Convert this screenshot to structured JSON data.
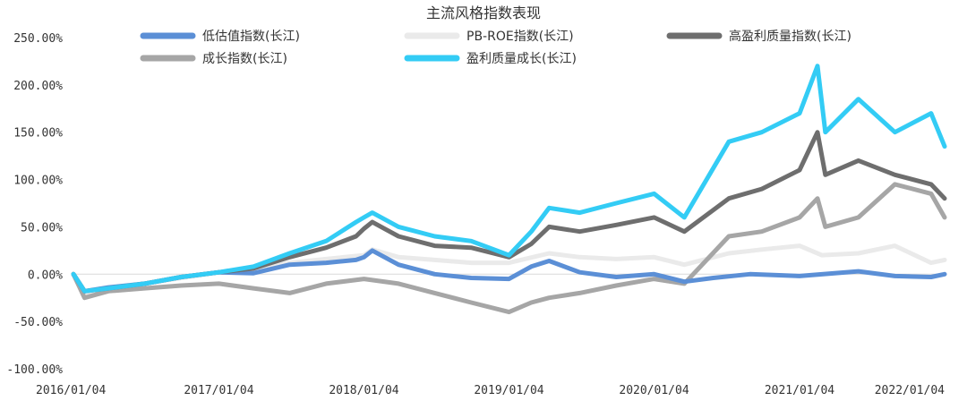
{
  "chart_data": {
    "type": "line",
    "title": "主流风格指数表现",
    "xlabel": "",
    "ylabel": "",
    "ylim": [
      -100,
      250
    ],
    "y_ticks": [
      "250.00%",
      "200.00%",
      "150.00%",
      "100.00%",
      "50.00%",
      "0.00%",
      "-50.00%",
      "-100.00%"
    ],
    "x_ticks": [
      "2016/01/04",
      "2017/01/04",
      "2018/01/04",
      "2019/01/04",
      "2020/01/04",
      "2021/01/04",
      "2022/01/04"
    ],
    "x_range": [
      "2016/01/04",
      "2022/01/04"
    ],
    "grid": false,
    "legend": "top",
    "series": [
      {
        "name": "低估值指数(长江)",
        "color": "#5B8FD6",
        "x": [
          "2016/01/04",
          "2016/02/01",
          "2016/04/01",
          "2016/07/01",
          "2016/10/01",
          "2017/01/04",
          "2017/04/01",
          "2017/07/01",
          "2017/10/01",
          "2017/12/15",
          "2018/01/04",
          "2018/01/25",
          "2018/04/01",
          "2018/07/01",
          "2018/10/01",
          "2019/01/04",
          "2019/03/01",
          "2019/04/15",
          "2019/07/01",
          "2019/10/01",
          "2020/01/04",
          "2020/03/20",
          "2020/06/01",
          "2020/09/01",
          "2021/01/04",
          "2021/06/01",
          "2021/09/01",
          "2021/12/01",
          "2022/01/04"
        ],
        "values": [
          0,
          -18,
          -14,
          -10,
          -3,
          2,
          1,
          10,
          12,
          15,
          18,
          25,
          10,
          0,
          -4,
          -5,
          8,
          14,
          2,
          -3,
          0,
          -8,
          -4,
          0,
          -2,
          3,
          -2,
          -3,
          0
        ]
      },
      {
        "name": "PB-ROE指数(长江)",
        "color": "#EAEAEA",
        "x": [
          "2016/01/04",
          "2016/02/01",
          "2016/04/01",
          "2016/07/01",
          "2016/10/01",
          "2017/01/04",
          "2017/04/01",
          "2017/07/01",
          "2017/10/01",
          "2018/01/04",
          "2018/01/25",
          "2018/04/01",
          "2018/07/01",
          "2018/10/01",
          "2019/01/04",
          "2019/04/15",
          "2019/07/01",
          "2019/10/01",
          "2020/01/04",
          "2020/03/20",
          "2020/07/10",
          "2020/10/01",
          "2021/01/04",
          "2021/03/01",
          "2021/06/01",
          "2021/09/01",
          "2021/12/01",
          "2022/01/04"
        ],
        "values": [
          0,
          -20,
          -15,
          -10,
          -4,
          2,
          4,
          12,
          16,
          20,
          26,
          18,
          15,
          12,
          12,
          22,
          18,
          16,
          18,
          10,
          22,
          26,
          30,
          20,
          22,
          30,
          12,
          15
        ]
      },
      {
        "name": "高盈利质量指数(长江)",
        "color": "#6E6E6E",
        "x": [
          "2016/01/04",
          "2016/02/01",
          "2016/04/01",
          "2016/07/01",
          "2016/10/01",
          "2017/01/04",
          "2017/04/01",
          "2017/07/01",
          "2017/10/01",
          "2017/12/15",
          "2018/01/04",
          "2018/01/25",
          "2018/04/01",
          "2018/07/01",
          "2018/10/01",
          "2019/01/04",
          "2019/03/01",
          "2019/04/15",
          "2019/07/01",
          "2019/10/01",
          "2020/01/04",
          "2020/03/20",
          "2020/07/10",
          "2020/10/01",
          "2021/01/04",
          "2021/02/18",
          "2021/03/10",
          "2021/06/01",
          "2021/09/01",
          "2021/12/01",
          "2022/01/04"
        ],
        "values": [
          0,
          -18,
          -15,
          -10,
          -3,
          2,
          6,
          18,
          28,
          40,
          48,
          55,
          40,
          30,
          28,
          18,
          32,
          50,
          45,
          52,
          60,
          45,
          80,
          90,
          110,
          150,
          105,
          120,
          105,
          95,
          80
        ]
      },
      {
        "name": "成长指数(长江)",
        "color": "#A6A6A6",
        "x": [
          "2016/01/04",
          "2016/02/01",
          "2016/04/01",
          "2016/07/01",
          "2016/10/01",
          "2017/01/04",
          "2017/04/01",
          "2017/07/01",
          "2017/10/01",
          "2018/01/04",
          "2018/04/01",
          "2018/07/01",
          "2018/10/01",
          "2019/01/04",
          "2019/03/01",
          "2019/04/15",
          "2019/07/01",
          "2019/10/01",
          "2020/01/04",
          "2020/03/20",
          "2020/07/10",
          "2020/10/01",
          "2021/01/04",
          "2021/02/18",
          "2021/03/10",
          "2021/06/01",
          "2021/09/01",
          "2021/12/01",
          "2022/01/04"
        ],
        "values": [
          0,
          -25,
          -18,
          -15,
          -12,
          -10,
          -15,
          -20,
          -10,
          -5,
          -10,
          -20,
          -30,
          -40,
          -30,
          -25,
          -20,
          -12,
          -5,
          -10,
          40,
          45,
          60,
          80,
          50,
          60,
          95,
          85,
          60
        ]
      },
      {
        "name": "盈利质量成长(长江)",
        "color": "#33CCF5",
        "x": [
          "2016/01/04",
          "2016/02/01",
          "2016/04/01",
          "2016/07/01",
          "2016/10/01",
          "2017/01/04",
          "2017/04/01",
          "2017/07/01",
          "2017/10/01",
          "2017/12/15",
          "2018/01/04",
          "2018/01/25",
          "2018/04/01",
          "2018/07/01",
          "2018/10/01",
          "2019/01/04",
          "2019/03/01",
          "2019/04/15",
          "2019/07/01",
          "2019/10/01",
          "2020/01/04",
          "2020/03/20",
          "2020/07/10",
          "2020/10/01",
          "2021/01/04",
          "2021/02/18",
          "2021/03/10",
          "2021/06/01",
          "2021/09/01",
          "2021/12/01",
          "2022/01/04"
        ],
        "values": [
          0,
          -18,
          -15,
          -10,
          -3,
          2,
          8,
          22,
          35,
          55,
          60,
          65,
          50,
          40,
          35,
          20,
          45,
          70,
          65,
          75,
          85,
          60,
          140,
          150,
          170,
          220,
          150,
          185,
          150,
          170,
          135
        ]
      }
    ]
  }
}
